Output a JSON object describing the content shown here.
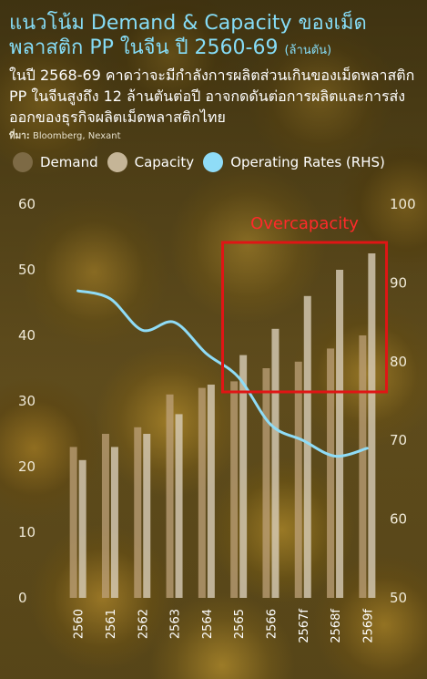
{
  "header": {
    "title": "แนวโน้ม Demand & Capacity ของเม็ดพลาสติก PP ในจีน ปี 2560-69",
    "title_unit": "(ล้านตัน)",
    "subtitle": "ในปี 2568-69 คาดว่าจะมีกำลังการผลิตส่วนเกินของเม็ดพลาสติก PP ในจีนสูงถึง 12 ล้านตันต่อปี อาจกดดันต่อการผลิตและการส่งออกของธุรกิจผลิตเม็ดพลาสติกไทย",
    "source_label": "ที่มา:",
    "source_text": "Bloomberg, Nexant"
  },
  "chart_data": {
    "type": "bar",
    "categories": [
      "2560",
      "2561",
      "2562",
      "2563",
      "2564",
      "2565",
      "2566",
      "2567f",
      "2568f",
      "2569f"
    ],
    "series": [
      {
        "name": "Demand",
        "type": "bar",
        "axis": "left",
        "values": [
          23,
          25,
          26,
          31,
          32,
          33,
          35,
          36,
          38,
          40
        ]
      },
      {
        "name": "Capacity",
        "type": "bar",
        "axis": "left",
        "values": [
          21,
          23,
          25,
          28,
          32.5,
          37,
          41,
          46,
          50,
          52.5
        ]
      },
      {
        "name": "Operating Rates (RHS)",
        "type": "line",
        "axis": "right",
        "values": [
          89,
          88,
          84,
          85,
          81,
          78,
          72,
          70,
          68,
          69
        ]
      }
    ],
    "yleft": {
      "min": 0,
      "max": 60,
      "ticks": [
        0,
        10,
        20,
        30,
        40,
        50,
        60
      ]
    },
    "yright": {
      "min": 50,
      "max": 100,
      "ticks": [
        50,
        60,
        70,
        80,
        90,
        100
      ]
    },
    "annotation": {
      "label": "Overcapacity",
      "from_category": "2565",
      "to_category": "2569f"
    },
    "legend": "top-left",
    "grid": false,
    "colors": {
      "demand": "#bda27a",
      "capacity": "#d8cdb8",
      "operating_rate": "#8fdcf7",
      "annotation": "#e01515",
      "title": "#86dcf6"
    }
  }
}
